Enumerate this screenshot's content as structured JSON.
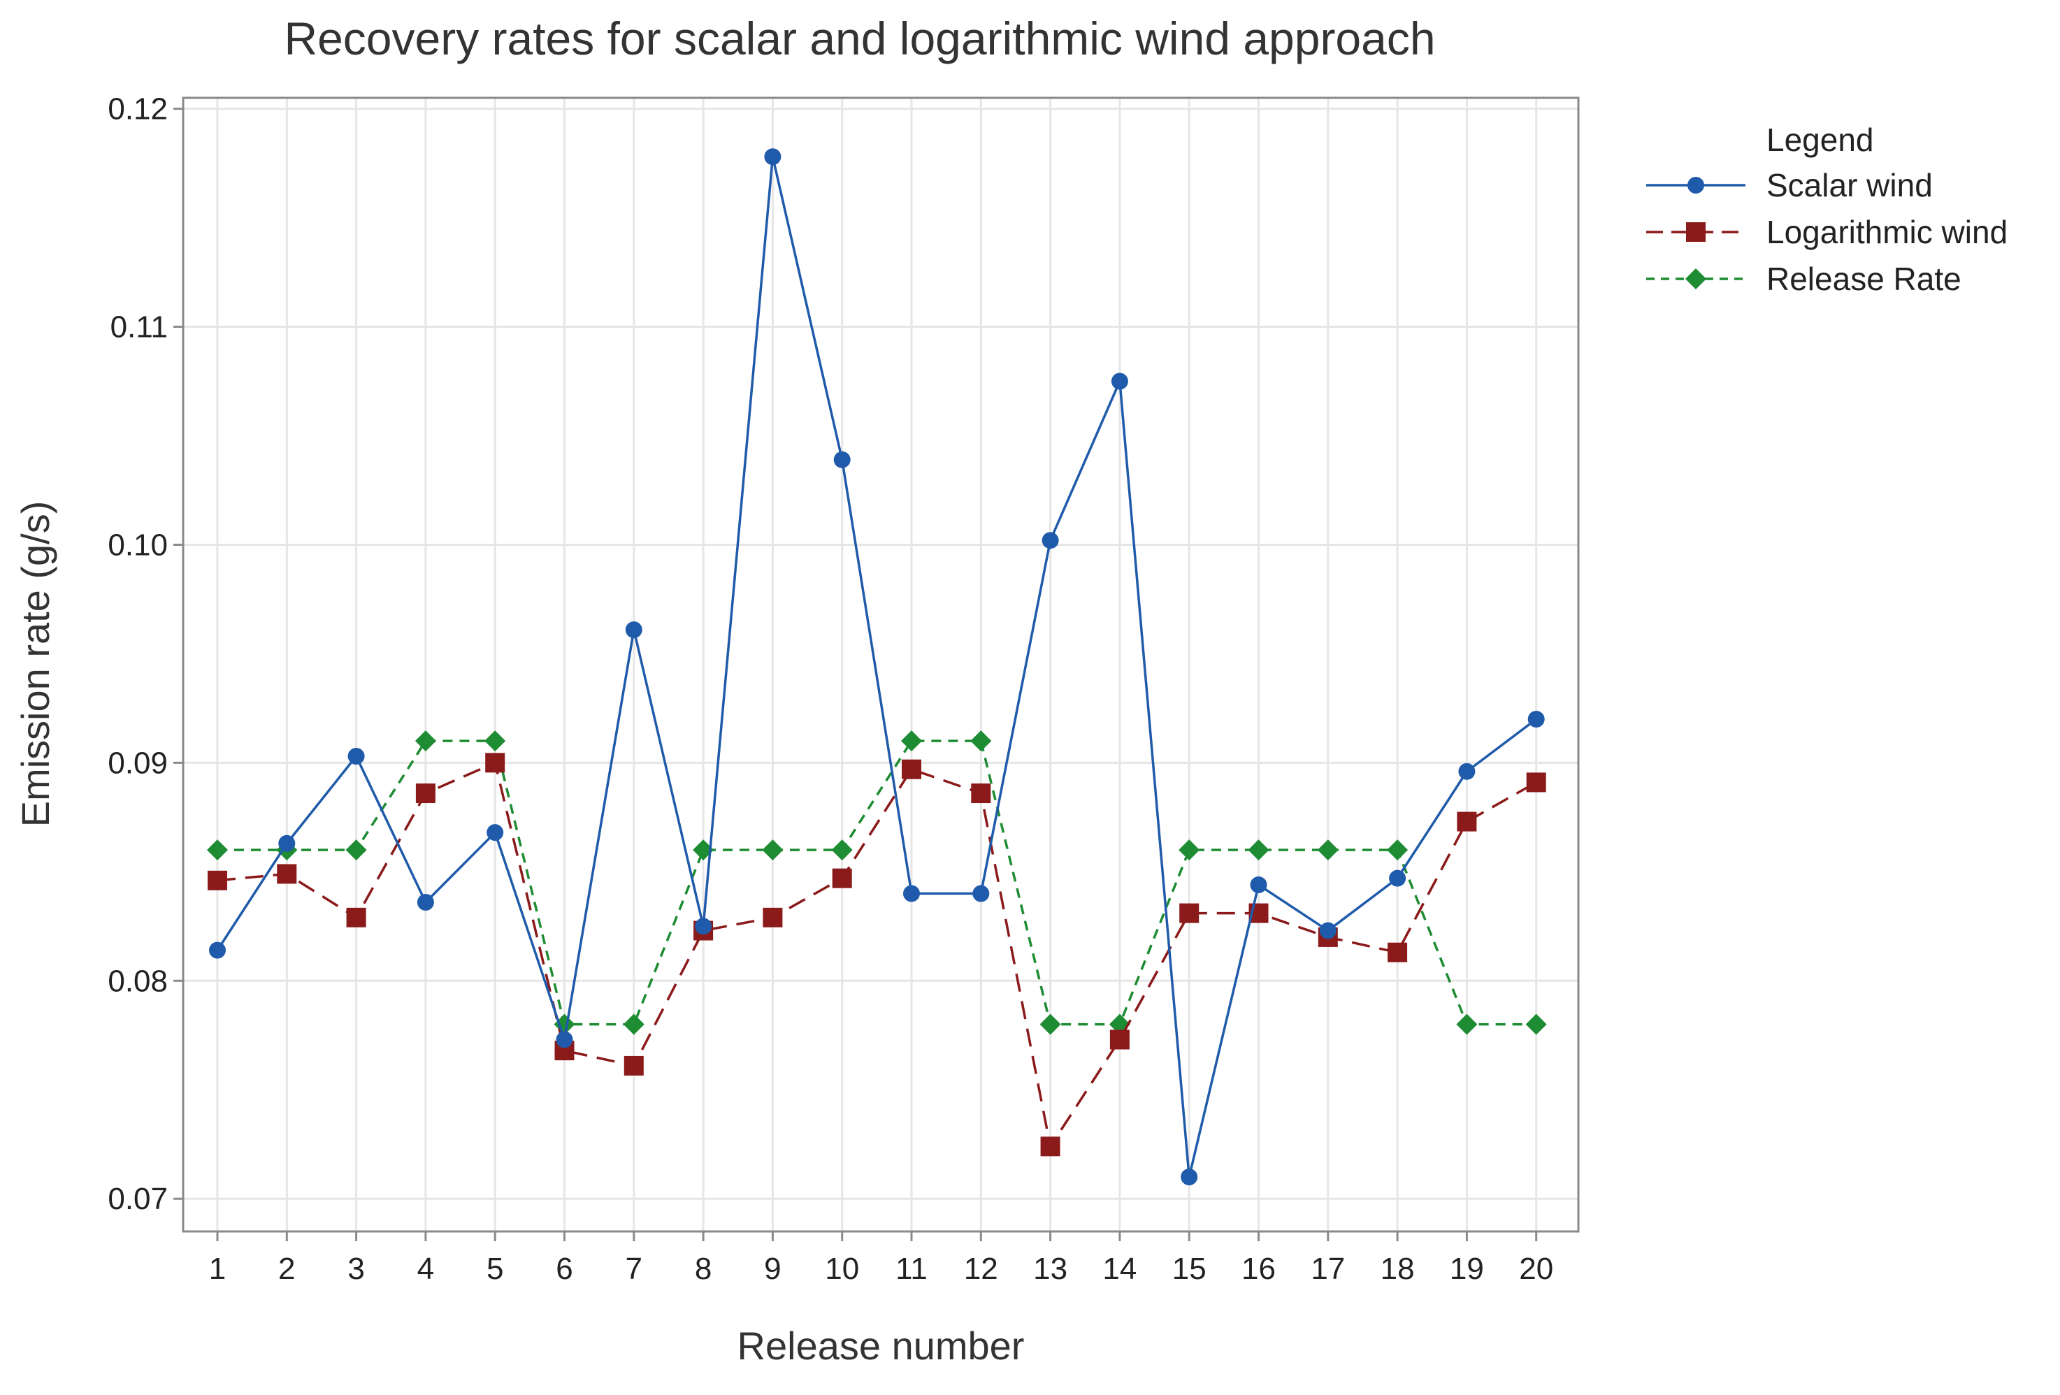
{
  "chart_data": {
    "type": "line",
    "title": "Recovery rates for scalar and logarithmic wind approach",
    "xlabel": "Release number",
    "ylabel": "Emission rate (g/s)",
    "categories": [
      "1",
      "2",
      "3",
      "4",
      "5",
      "6",
      "7",
      "8",
      "9",
      "10",
      "11",
      "12",
      "13",
      "14",
      "15",
      "16",
      "17",
      "18",
      "19",
      "20"
    ],
    "ylim": [
      0.0685,
      0.1205
    ],
    "yticks": [
      "0.07",
      "0.08",
      "0.09",
      "0.10",
      "0.11",
      "0.12"
    ],
    "ytick_values": [
      0.07,
      0.08,
      0.09,
      0.1,
      0.11,
      0.12
    ],
    "grid": true,
    "legend": {
      "title": "Legend",
      "position": "right"
    },
    "series": [
      {
        "name": "Scalar wind",
        "color": "#1F5BAA",
        "line_style": "solid",
        "marker": "circle",
        "values": [
          0.0814,
          0.0863,
          0.0903,
          0.0836,
          0.0868,
          0.0773,
          0.0961,
          0.0825,
          0.1178,
          0.1039,
          0.084,
          0.084,
          0.1002,
          0.1075,
          0.071,
          0.0844,
          0.0823,
          0.0847,
          0.0896,
          0.092
        ]
      },
      {
        "name": "Logarithmic wind",
        "color": "#8B1A1A",
        "line_style": "dashed",
        "marker": "square",
        "values": [
          0.0846,
          0.0849,
          0.0829,
          0.0886,
          0.09,
          0.0768,
          0.0761,
          0.0823,
          0.0829,
          0.0847,
          0.0897,
          0.0886,
          0.0724,
          0.0773,
          0.0831,
          0.0831,
          0.082,
          0.0813,
          0.0873,
          0.0891
        ]
      },
      {
        "name": "Release Rate",
        "color": "#1E8C33",
        "line_style": "dotted",
        "marker": "diamond",
        "values": [
          0.086,
          0.086,
          0.086,
          0.091,
          0.091,
          0.078,
          0.078,
          0.086,
          0.086,
          0.086,
          0.091,
          0.091,
          0.078,
          0.078,
          0.086,
          0.086,
          0.086,
          0.086,
          0.078,
          0.078
        ]
      }
    ]
  }
}
